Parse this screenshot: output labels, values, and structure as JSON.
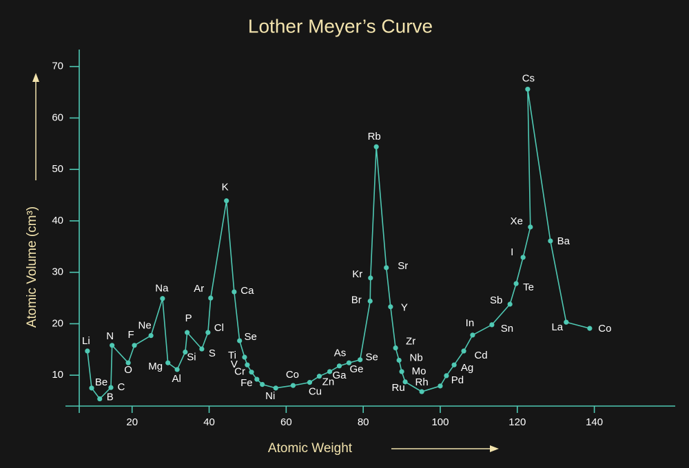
{
  "chart_data": {
    "type": "line",
    "title": "Lother Meyer’s Curve",
    "xlabel": "Atomic Weight",
    "ylabel": "Atomic Volume (cm³)",
    "x": [
      8.4,
      9.5,
      11.6,
      14.5,
      14.8,
      19.0,
      20.6,
      24.9,
      27.9,
      29.3,
      31.7,
      33.8,
      34.3,
      38.1,
      39.7,
      40.4,
      44.5,
      46.5,
      47.9,
      49.2,
      49.9,
      51.0,
      52.4,
      53.8,
      57.3,
      61.8,
      66.1,
      68.6,
      71.3,
      73.8,
      76.3,
      79.2,
      81.8,
      81.9,
      83.4,
      86.0,
      87.1,
      88.4,
      89.3,
      90.0,
      90.9,
      95.2,
      100.0,
      101.6,
      103.6,
      106.1,
      108.4,
      113.4,
      118.1,
      119.7,
      121.5,
      123.4,
      122.7,
      128.6,
      132.7,
      138.8
    ],
    "labels": [
      "Li",
      "Be",
      "B",
      "C",
      "N",
      "O",
      "F",
      "Ne",
      "Na",
      "Mg",
      "Al",
      "Si",
      "P",
      "S",
      "Cl",
      "Ar",
      "K",
      "Ca",
      "Se",
      "Ti",
      "V",
      "Cr",
      "Fe",
      null,
      "Ni",
      "Co",
      "Cu",
      "Zn",
      "Ga",
      "As",
      "Ge",
      "Se",
      "Br",
      "Kr",
      "Rb",
      "Sr",
      "Y",
      "Zr",
      "Nb",
      "Mo",
      "Ru",
      "Rh",
      "Pd",
      null,
      "Ag",
      "Cd",
      "In",
      "Sn",
      "Sb",
      "Te",
      "I",
      "Xe",
      "Cs",
      "Ba",
      "La",
      "Co"
    ],
    "series": [
      {
        "color": "#4fc9b4",
        "values": [
          14.7,
          7.5,
          5.4,
          7.6,
          15.8,
          12.4,
          15.8,
          17.7,
          24.9,
          12.4,
          11.1,
          14.5,
          18.3,
          15.1,
          18.3,
          25.0,
          43.9,
          26.2,
          16.7,
          13.5,
          12.0,
          10.6,
          9.2,
          8.2,
          7.5,
          8.0,
          8.6,
          9.8,
          10.7,
          11.8,
          12.4,
          13.0,
          24.4,
          28.9,
          54.4,
          30.9,
          23.3,
          15.3,
          12.9,
          10.7,
          8.7,
          6.8,
          7.9,
          9.9,
          12.0,
          14.7,
          17.8,
          19.8,
          23.8,
          27.8,
          32.9,
          38.8,
          65.6,
          36.1,
          20.3,
          19.1
        ]
      }
    ],
    "xlim": [
      2.7,
      161
    ],
    "ylim": [
      4,
      73.3
    ],
    "xticks": [
      20,
      40,
      60,
      80,
      100,
      120,
      140
    ],
    "yticks": [
      10,
      20,
      30,
      40,
      50,
      60,
      70
    ],
    "grid": false
  }
}
